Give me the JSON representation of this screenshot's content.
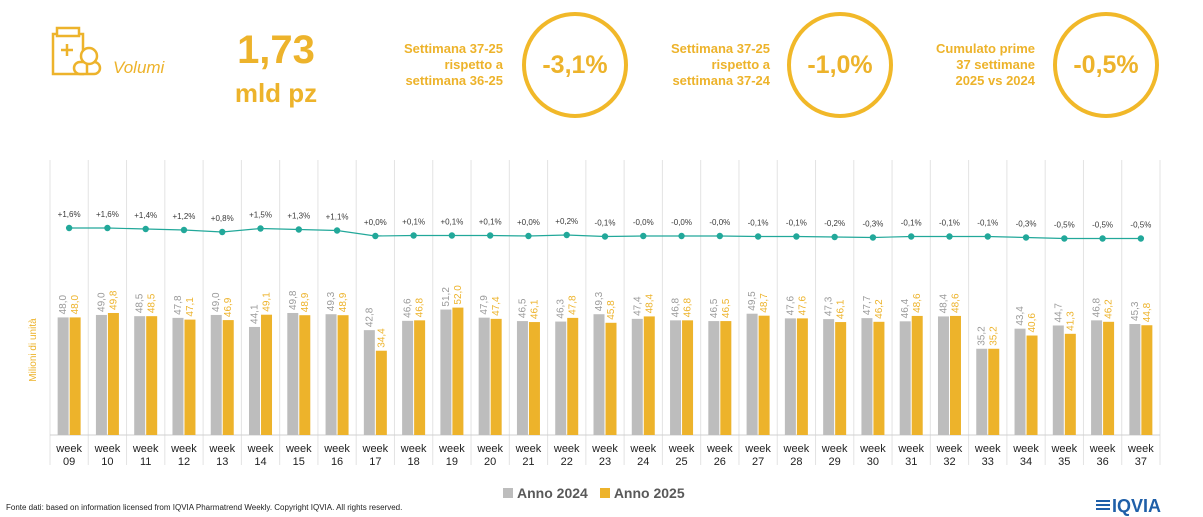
{
  "header": {
    "volume_label": "Volumi",
    "volume_value": "1,73",
    "volume_unit": "mld pz",
    "kpis": [
      {
        "label_lines": [
          "Settimana 37-25",
          "rispetto a",
          "settimana 36-25"
        ],
        "value": "-3,1%"
      },
      {
        "label_lines": [
          "Settimana 37-25",
          "rispetto a",
          "settimana 37-24"
        ],
        "value": "-1,0%"
      },
      {
        "label_lines": [
          "Cumulato prime",
          "37 settimane",
          "2025 vs 2024"
        ],
        "value": "-0,5%"
      }
    ]
  },
  "colors": {
    "accent": "#EDB32B",
    "series_2024": "#BDBDBD",
    "series_2025": "#EDB32B",
    "line": "#22A89A"
  },
  "chart_data": {
    "type": "bar",
    "ylabel": "Milioni di unità",
    "x_prefix": "week",
    "categories": [
      "09",
      "10",
      "11",
      "12",
      "13",
      "14",
      "15",
      "16",
      "17",
      "18",
      "19",
      "20",
      "21",
      "22",
      "23",
      "24",
      "25",
      "26",
      "27",
      "28",
      "29",
      "30",
      "31",
      "32",
      "33",
      "34",
      "35",
      "36",
      "37"
    ],
    "series": [
      {
        "name": "Anno 2024",
        "values": [
          "48,0",
          "49,0",
          "48,5",
          "47,8",
          "49,0",
          "44,1",
          "49,8",
          "49,3",
          "42,8",
          "46,6",
          "51,2",
          "47,9",
          "46,5",
          "46,3",
          "49,3",
          "47,4",
          "46,8",
          "46,5",
          "49,5",
          "47,6",
          "47,3",
          "47,7",
          "46,4",
          "48,4",
          "35,2",
          "43,4",
          "44,7",
          "46,8",
          "45,3"
        ]
      },
      {
        "name": "Anno 2025",
        "values": [
          "48,0",
          "49,8",
          "48,5",
          "47,1",
          "46,9",
          "49,1",
          "48,9",
          "48,9",
          "34,4",
          "46,8",
          "52,0",
          "47,4",
          "46,1",
          "47,8",
          "45,8",
          "48,4",
          "46,8",
          "46,5",
          "48,7",
          "47,6",
          "46,1",
          "46,2",
          "48,6",
          "48,6",
          "35,2",
          "40,6",
          "41,3",
          "46,2",
          "44,8"
        ]
      }
    ],
    "variation": [
      "+1,6%",
      "+1,6%",
      "+1,4%",
      "+1,2%",
      "+0,8%",
      "+1,5%",
      "+1,3%",
      "+1,1%",
      "+0,0%",
      "+0,1%",
      "+0,1%",
      "+0,1%",
      "+0,0%",
      "+0,2%",
      "-0,1%",
      "-0,0%",
      "-0,0%",
      "-0,0%",
      "-0,1%",
      "-0,1%",
      "-0,2%",
      "-0,3%",
      "-0,1%",
      "-0,1%",
      "-0,1%",
      "-0,3%",
      "-0,5%",
      "-0,5%",
      "-0,5%"
    ]
  },
  "footer": {
    "source": "Fonte dati: based on information licensed from IQVIA Pharmatrend Weekly. Copyright IQVIA. All rights reserved.",
    "logo_text": "IQVIA"
  }
}
